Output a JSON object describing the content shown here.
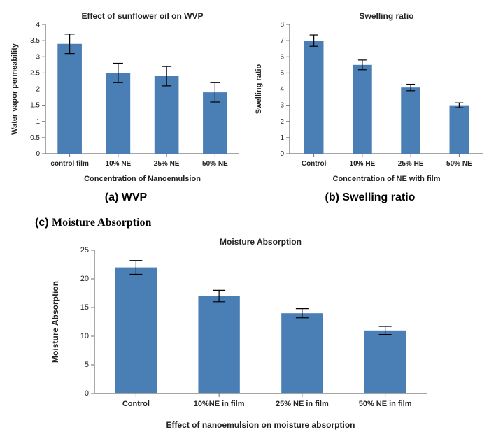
{
  "colors": {
    "bar_fill": "#4a7fb5",
    "axis": "#6f6f6f",
    "tick": "#6f6f6f",
    "error_bar": "#000000",
    "text_color": "#222222",
    "title_color": "#222222",
    "background": "#ffffff"
  },
  "chart_a": {
    "type": "bar",
    "title": "Effect of sunflower oil on WVP",
    "title_fontsize": 12,
    "title_fontweight": "bold",
    "xlabel": "Concentration of Nanoemulsion",
    "ylabel": "Water vapor permeability",
    "label_fontsize": 11,
    "label_fontweight": "bold",
    "ylim": [
      0,
      4
    ],
    "ytick_step": 0.5,
    "categories": [
      "control film",
      "10% NE",
      "25% NE",
      "50% NE"
    ],
    "values": [
      3.4,
      2.5,
      2.4,
      1.9
    ],
    "errors": [
      0.3,
      0.3,
      0.3,
      0.3
    ],
    "bar_width": 0.5,
    "tick_fontsize": 10,
    "caption": "(a) WVP"
  },
  "chart_b": {
    "type": "bar",
    "title": "Swelling ratio",
    "title_fontsize": 12,
    "title_fontweight": "bold",
    "xlabel": "Concentration of NE with film",
    "ylabel": "Swelling ratio",
    "label_fontsize": 11,
    "label_fontweight": "bold",
    "ylim": [
      0,
      8
    ],
    "ytick_step": 1,
    "categories": [
      "Control",
      "10% HE",
      "25% HE",
      "50% NE"
    ],
    "values": [
      7.0,
      5.5,
      4.1,
      3.0
    ],
    "errors": [
      0.35,
      0.3,
      0.2,
      0.15
    ],
    "bar_width": 0.4,
    "tick_fontsize": 10,
    "caption": "(b) Swelling ratio"
  },
  "chart_c": {
    "type": "bar",
    "title": "Moisture Absorption",
    "title_fontsize": 12,
    "title_fontweight": "bold",
    "xlabel": "Effect  of nanoemulsion on moisture absorption",
    "ylabel": "Moisture Absorption",
    "label_fontsize": 12,
    "label_fontweight": "bold",
    "ylim": [
      0,
      25
    ],
    "ytick_step": 5,
    "categories": [
      "Control",
      "10%NE in film",
      "25% NE in film",
      "50% NE in film"
    ],
    "values": [
      22,
      17,
      14,
      11
    ],
    "errors": [
      1.2,
      1.0,
      0.8,
      0.7
    ],
    "bar_width": 0.5,
    "tick_fontsize": 11,
    "panel_label": "(c) Moisture Absorption",
    "caption_c_a": "(c)",
    "caption_c_b": "Moisture Absorption"
  }
}
